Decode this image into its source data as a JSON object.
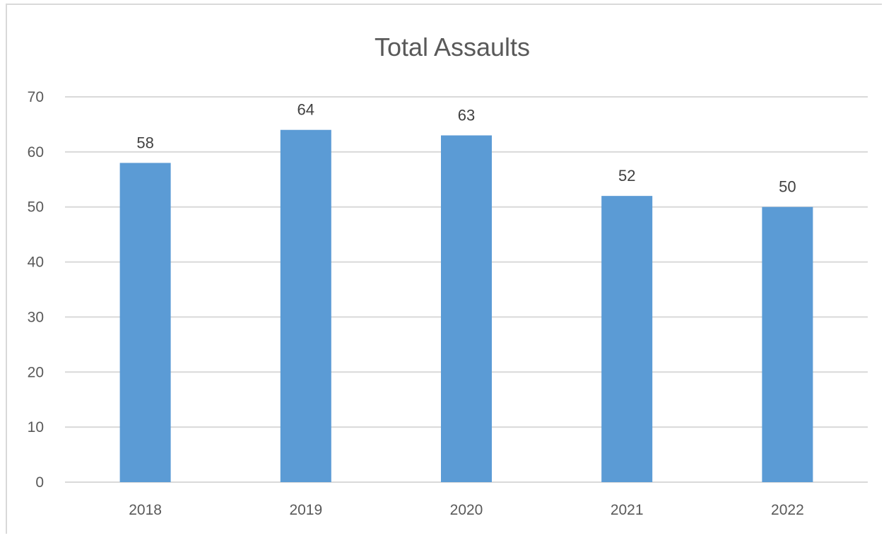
{
  "chart_data": {
    "type": "bar",
    "title": "Total Assaults",
    "xlabel": "",
    "ylabel": "",
    "categories": [
      "2018",
      "2019",
      "2020",
      "2021",
      "2022"
    ],
    "values": [
      58,
      64,
      63,
      52,
      50
    ],
    "data_labels": [
      "58",
      "64",
      "63",
      "52",
      "50"
    ],
    "ylim": [
      0,
      70
    ],
    "yticks": [
      0,
      10,
      20,
      30,
      40,
      50,
      60,
      70
    ],
    "grid": true,
    "legend": "none",
    "bar_color": "#5b9bd5",
    "gridline_color": "#d9d9d9"
  }
}
